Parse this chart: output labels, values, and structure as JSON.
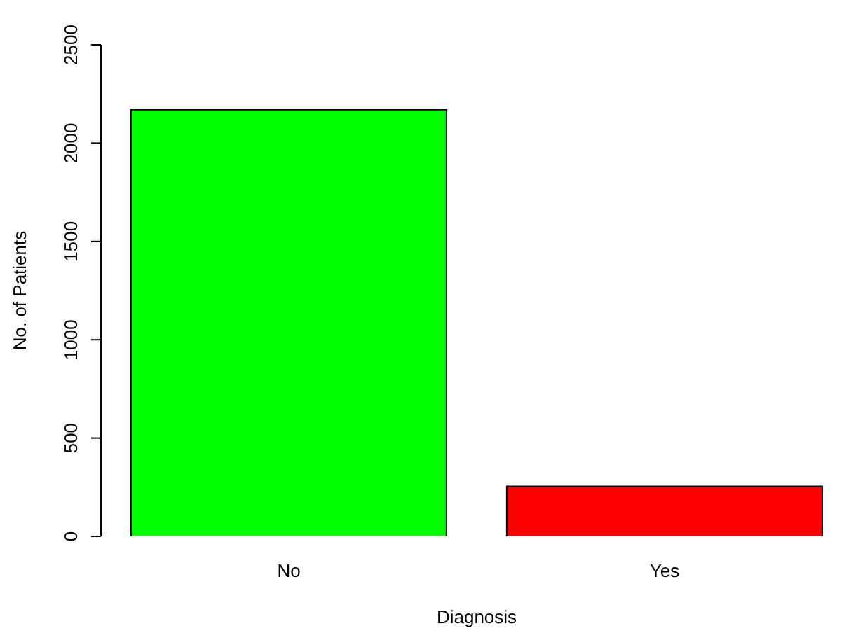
{
  "chart_data": {
    "type": "bar",
    "categories": [
      "No",
      "Yes"
    ],
    "values": [
      2170,
      255
    ],
    "colors": [
      "#00ff00",
      "#ff0000"
    ],
    "xlabel": "Diagnosis",
    "ylabel": "No. of Patients",
    "ylim": [
      0,
      2500
    ],
    "yticks": [
      0,
      500,
      1000,
      1500,
      2000,
      2500
    ],
    "grid": false,
    "legend": false
  }
}
